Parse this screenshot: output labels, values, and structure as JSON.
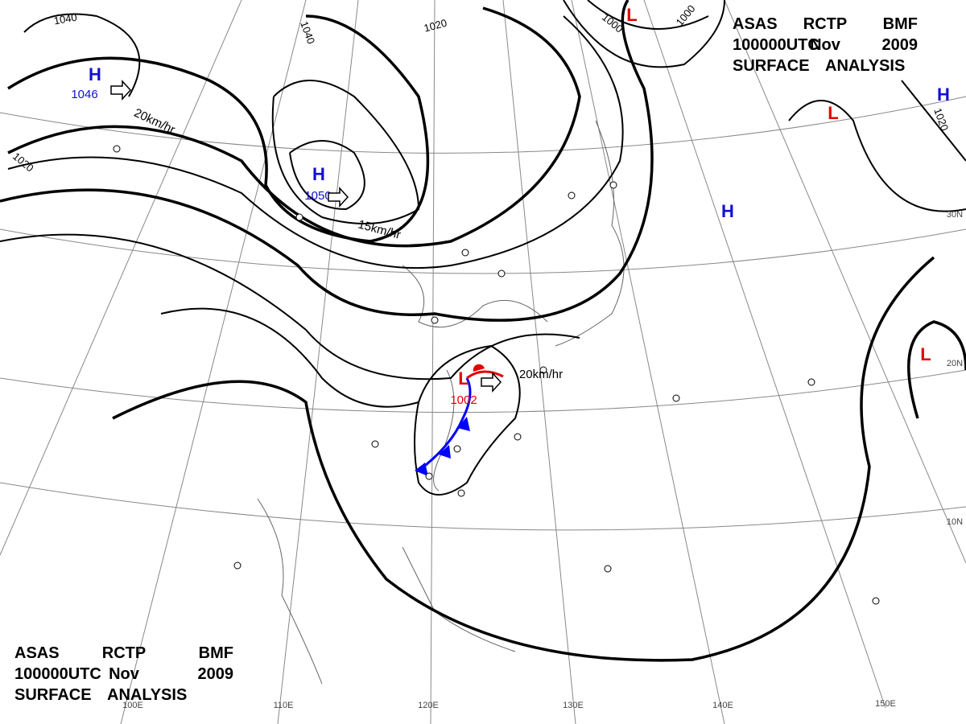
{
  "header": {
    "lines": [
      [
        "ASAS",
        "RCTP",
        "BMF"
      ],
      [
        "100000UTC",
        "Nov",
        "2009"
      ],
      [
        "SURFACE",
        "ANALYSIS"
      ]
    ]
  },
  "centers": [
    {
      "type": "H",
      "value": "1046"
    },
    {
      "type": "H",
      "value": "1050"
    },
    {
      "type": "L",
      "value": "1002"
    },
    {
      "type": "L"
    },
    {
      "type": "L"
    },
    {
      "type": "L"
    },
    {
      "type": "H"
    },
    {
      "type": "H"
    }
  ],
  "isobar_labels": [
    "1040",
    "1040",
    "1020",
    "1000",
    "1000",
    "1020",
    "1020"
  ],
  "motions": [
    "20km/hr",
    "15km/hr",
    "20km/hr"
  ],
  "longitudes": [
    "100E",
    "110E",
    "120E",
    "130E",
    "140E",
    "150E"
  ],
  "latitudes": [
    "30N",
    "20N",
    "10N"
  ]
}
